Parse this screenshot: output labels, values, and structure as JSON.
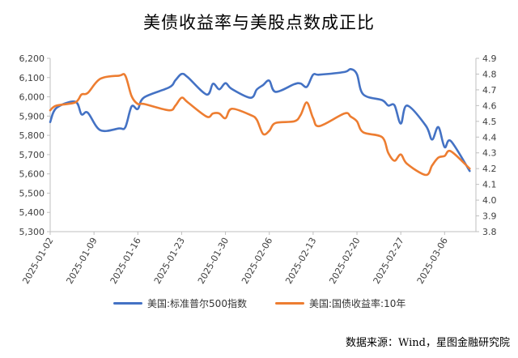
{
  "chart_data": {
    "type": "line",
    "title": "美债收益率与美股点数成正比",
    "x_ticks": [
      "2025-01-02",
      "2025-01-09",
      "2025-01-16",
      "2025-01-23",
      "2025-01-30",
      "2025-02-06",
      "2025-02-13",
      "2025-02-20",
      "2025-02-27",
      "2025-03-06"
    ],
    "x_range": [
      "2025-01-02",
      "2025-03-11"
    ],
    "y_left": {
      "min": 5300,
      "max": 6200,
      "step": 100,
      "tick_labels": [
        "5,300",
        "5,400",
        "5,500",
        "5,600",
        "5,700",
        "5,800",
        "5,900",
        "6,000",
        "6,100",
        "6,200"
      ]
    },
    "y_right": {
      "min": 3.8,
      "max": 4.9,
      "step": 0.1,
      "tick_labels": [
        "3.8",
        "3.9",
        "4.0",
        "4.1",
        "4.2",
        "4.3",
        "4.4",
        "4.5",
        "4.6",
        "4.7",
        "4.8",
        "4.9"
      ]
    },
    "grid": false,
    "legend_position": "bottom",
    "series": [
      {
        "name": "美国:标准普尔500指数",
        "axis": "left",
        "color": "#4472C4",
        "points": [
          [
            "2025-01-02",
            5869
          ],
          [
            "2025-01-03",
            5942
          ],
          [
            "2025-01-06",
            5975
          ],
          [
            "2025-01-07",
            5909
          ],
          [
            "2025-01-08",
            5918
          ],
          [
            "2025-01-10",
            5827
          ],
          [
            "2025-01-13",
            5836
          ],
          [
            "2025-01-14",
            5842
          ],
          [
            "2025-01-15",
            5950
          ],
          [
            "2025-01-16",
            5937
          ],
          [
            "2025-01-17",
            5997
          ],
          [
            "2025-01-21",
            6049
          ],
          [
            "2025-01-22",
            6086
          ],
          [
            "2025-01-23",
            6119
          ],
          [
            "2025-01-24",
            6101
          ],
          [
            "2025-01-27",
            6012
          ],
          [
            "2025-01-28",
            6068
          ],
          [
            "2025-01-29",
            6039
          ],
          [
            "2025-01-30",
            6071
          ],
          [
            "2025-01-31",
            6041
          ],
          [
            "2025-02-03",
            5995
          ],
          [
            "2025-02-04",
            6038
          ],
          [
            "2025-02-05",
            6061
          ],
          [
            "2025-02-06",
            6084
          ],
          [
            "2025-02-07",
            6026
          ],
          [
            "2025-02-10",
            6066
          ],
          [
            "2025-02-11",
            6069
          ],
          [
            "2025-02-12",
            6052
          ],
          [
            "2025-02-13",
            6115
          ],
          [
            "2025-02-14",
            6115
          ],
          [
            "2025-02-18",
            6129
          ],
          [
            "2025-02-19",
            6144
          ],
          [
            "2025-02-20",
            6117
          ],
          [
            "2025-02-21",
            6013
          ],
          [
            "2025-02-24",
            5983
          ],
          [
            "2025-02-25",
            5955
          ],
          [
            "2025-02-26",
            5956
          ],
          [
            "2025-02-27",
            5861
          ],
          [
            "2025-02-28",
            5955
          ],
          [
            "2025-03-03",
            5850
          ],
          [
            "2025-03-04",
            5778
          ],
          [
            "2025-03-05",
            5843
          ],
          [
            "2025-03-06",
            5739
          ],
          [
            "2025-03-07",
            5770
          ],
          [
            "2025-03-10",
            5615
          ]
        ]
      },
      {
        "name": "美国:国债收益率:10年",
        "axis": "right",
        "color": "#ED7D31",
        "points": [
          [
            "2025-01-02",
            4.57
          ],
          [
            "2025-01-03",
            4.6
          ],
          [
            "2025-01-06",
            4.62
          ],
          [
            "2025-01-07",
            4.67
          ],
          [
            "2025-01-08",
            4.68
          ],
          [
            "2025-01-10",
            4.77
          ],
          [
            "2025-01-13",
            4.79
          ],
          [
            "2025-01-14",
            4.79
          ],
          [
            "2025-01-15",
            4.66
          ],
          [
            "2025-01-16",
            4.61
          ],
          [
            "2025-01-17",
            4.61
          ],
          [
            "2025-01-21",
            4.57
          ],
          [
            "2025-01-22",
            4.6
          ],
          [
            "2025-01-23",
            4.65
          ],
          [
            "2025-01-24",
            4.62
          ],
          [
            "2025-01-27",
            4.53
          ],
          [
            "2025-01-28",
            4.55
          ],
          [
            "2025-01-29",
            4.55
          ],
          [
            "2025-01-30",
            4.52
          ],
          [
            "2025-01-31",
            4.58
          ],
          [
            "2025-02-03",
            4.54
          ],
          [
            "2025-02-04",
            4.51
          ],
          [
            "2025-02-05",
            4.42
          ],
          [
            "2025-02-06",
            4.44
          ],
          [
            "2025-02-07",
            4.49
          ],
          [
            "2025-02-10",
            4.5
          ],
          [
            "2025-02-11",
            4.54
          ],
          [
            "2025-02-12",
            4.62
          ],
          [
            "2025-02-13",
            4.52
          ],
          [
            "2025-02-14",
            4.47
          ],
          [
            "2025-02-18",
            4.55
          ],
          [
            "2025-02-19",
            4.53
          ],
          [
            "2025-02-20",
            4.5
          ],
          [
            "2025-02-21",
            4.43
          ],
          [
            "2025-02-24",
            4.4
          ],
          [
            "2025-02-25",
            4.3
          ],
          [
            "2025-02-26",
            4.25
          ],
          [
            "2025-02-27",
            4.29
          ],
          [
            "2025-02-28",
            4.23
          ],
          [
            "2025-03-03",
            4.16
          ],
          [
            "2025-03-04",
            4.22
          ],
          [
            "2025-03-05",
            4.27
          ],
          [
            "2025-03-06",
            4.28
          ],
          [
            "2025-03-07",
            4.31
          ],
          [
            "2025-03-10",
            4.2
          ]
        ]
      }
    ]
  },
  "source_note": "数据来源：Wind，星图金融研究院"
}
